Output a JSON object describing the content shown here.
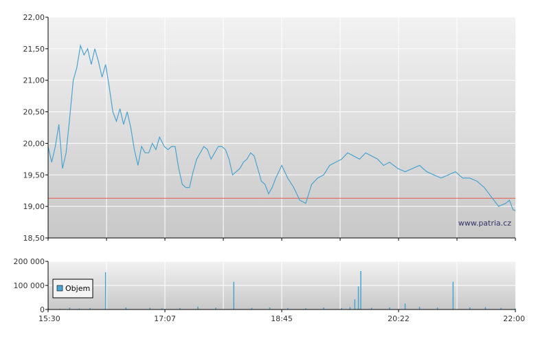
{
  "colors": {
    "price_line": "#4aa3d0",
    "reference_line": "#e05a4a",
    "volume_bar": "#4aa3d0",
    "plot_bg_top": "#f2f2f2",
    "plot_bg_bottom": "#c9c9c9",
    "grid": "#ffffff",
    "axis": "#000000"
  },
  "watermark": "www.patria.cz",
  "chart_data": [
    {
      "type": "line",
      "title": "",
      "xlabel": "",
      "ylabel": "",
      "x_ticks": [
        "15:30",
        "17:07",
        "18:45",
        "20:22",
        "22:00"
      ],
      "ylim": [
        18.5,
        22.0
      ],
      "y_ticks": [
        "18,50",
        "19,00",
        "19,50",
        "20,00",
        "20,50",
        "21,00",
        "21,50",
        "22,00"
      ],
      "grid": true,
      "reference_line": 19.13,
      "series": [
        {
          "x": [
            "15:30",
            "15:33",
            "15:36",
            "15:39",
            "15:42",
            "15:45",
            "15:48",
            "15:51",
            "15:54",
            "15:57",
            "16:00",
            "16:03",
            "16:06",
            "16:09",
            "16:12",
            "16:15",
            "16:18",
            "16:21",
            "16:24",
            "16:27",
            "16:30",
            "16:33",
            "16:36",
            "16:39",
            "16:42",
            "16:45",
            "16:48",
            "16:51",
            "16:54",
            "16:57",
            "17:00",
            "17:03",
            "17:07",
            "17:10",
            "17:13",
            "17:16",
            "17:19",
            "17:22",
            "17:25",
            "17:28",
            "17:31",
            "17:34",
            "17:37",
            "17:40",
            "17:43",
            "17:46",
            "17:49",
            "17:52",
            "17:55",
            "17:58",
            "18:01",
            "18:04",
            "18:07",
            "18:10",
            "18:13",
            "18:16",
            "18:19",
            "18:22",
            "18:25",
            "18:28",
            "18:31",
            "18:34",
            "18:37",
            "18:40",
            "18:45",
            "18:50",
            "18:55",
            "19:00",
            "19:05",
            "19:10",
            "19:15",
            "19:20",
            "19:25",
            "19:30",
            "19:35",
            "19:40",
            "19:45",
            "19:50",
            "19:55",
            "20:00",
            "20:05",
            "20:10",
            "20:15",
            "20:22",
            "20:28",
            "20:34",
            "20:40",
            "20:46",
            "20:52",
            "20:58",
            "21:04",
            "21:10",
            "21:16",
            "21:22",
            "21:28",
            "21:34",
            "21:40",
            "21:46",
            "21:52",
            "21:55",
            "21:58",
            "22:00"
          ],
          "values": [
            19.95,
            19.7,
            19.95,
            20.3,
            19.6,
            19.85,
            20.4,
            21.0,
            21.2,
            21.55,
            21.4,
            21.5,
            21.25,
            21.5,
            21.3,
            21.05,
            21.25,
            20.9,
            20.5,
            20.35,
            20.55,
            20.3,
            20.5,
            20.25,
            19.9,
            19.65,
            19.95,
            19.85,
            19.85,
            20.0,
            19.9,
            20.1,
            19.95,
            19.9,
            19.95,
            19.95,
            19.6,
            19.35,
            19.3,
            19.3,
            19.55,
            19.75,
            19.85,
            19.95,
            19.9,
            19.75,
            19.85,
            19.95,
            19.95,
            19.9,
            19.75,
            19.5,
            19.55,
            19.6,
            19.7,
            19.75,
            19.85,
            19.8,
            19.6,
            19.4,
            19.35,
            19.2,
            19.3,
            19.45,
            19.65,
            19.45,
            19.3,
            19.1,
            19.05,
            19.35,
            19.45,
            19.5,
            19.65,
            19.7,
            19.75,
            19.85,
            19.8,
            19.75,
            19.85,
            19.8,
            19.75,
            19.65,
            19.7,
            19.6,
            19.55,
            19.6,
            19.65,
            19.55,
            19.5,
            19.45,
            19.5,
            19.55,
            19.45,
            19.45,
            19.4,
            19.3,
            19.15,
            19.0,
            19.05,
            19.1,
            18.95,
            18.93
          ]
        }
      ]
    },
    {
      "type": "bar",
      "title": "",
      "xlabel": "",
      "ylabel": "",
      "ylim": [
        0,
        200000
      ],
      "y_ticks": [
        "0",
        "100 000",
        "200 000"
      ],
      "x_ticks": [
        "15:30",
        "17:07",
        "18:45",
        "20:22",
        "22:00"
      ],
      "grid": true,
      "legend": "top-left",
      "series": [
        {
          "name": "Objem",
          "x": [
            "15:30",
            "15:40",
            "15:48",
            "15:56",
            "16:05",
            "16:18",
            "16:35",
            "16:55",
            "17:05",
            "17:20",
            "17:35",
            "17:50",
            "18:05",
            "18:20",
            "18:35",
            "18:50",
            "19:05",
            "19:20",
            "19:35",
            "19:42",
            "19:46",
            "19:49",
            "19:51",
            "20:00",
            "20:15",
            "20:28",
            "20:40",
            "20:55",
            "21:08",
            "21:22",
            "21:35",
            "21:48",
            "22:00"
          ],
          "values": [
            5000,
            3000,
            8000,
            4000,
            6000,
            155000,
            9000,
            7000,
            5000,
            6000,
            12000,
            8000,
            115000,
            7000,
            9000,
            6000,
            5000,
            8000,
            6000,
            10000,
            42000,
            96000,
            160000,
            7000,
            9000,
            25000,
            11000,
            8000,
            115000,
            9000,
            10000,
            7000,
            4000
          ]
        }
      ]
    }
  ]
}
